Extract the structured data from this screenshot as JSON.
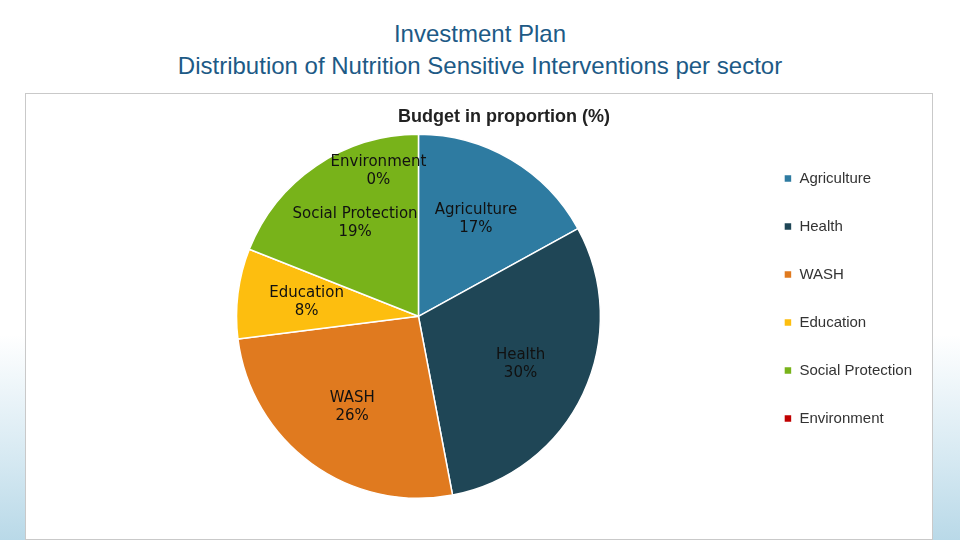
{
  "header": {
    "title": "Investment Plan",
    "subtitle": "Distribution of Nutrition Sensitive Interventions per sector"
  },
  "chart_data": {
    "type": "pie",
    "title": "Budget in proportion (%)",
    "categories": [
      "Agriculture",
      "Health",
      "WASH",
      "Education",
      "Social Protection",
      "Environment"
    ],
    "values": [
      17,
      30,
      26,
      8,
      19,
      0
    ],
    "value_labels": [
      "17%",
      "30%",
      "26%",
      "8%",
      "19%",
      "0%"
    ],
    "colors": [
      "#2e7ba1",
      "#1f4656",
      "#e07a1f",
      "#fdbe0f",
      "#78b31a",
      "#c00000"
    ],
    "data_labels": true,
    "legend": "right"
  }
}
